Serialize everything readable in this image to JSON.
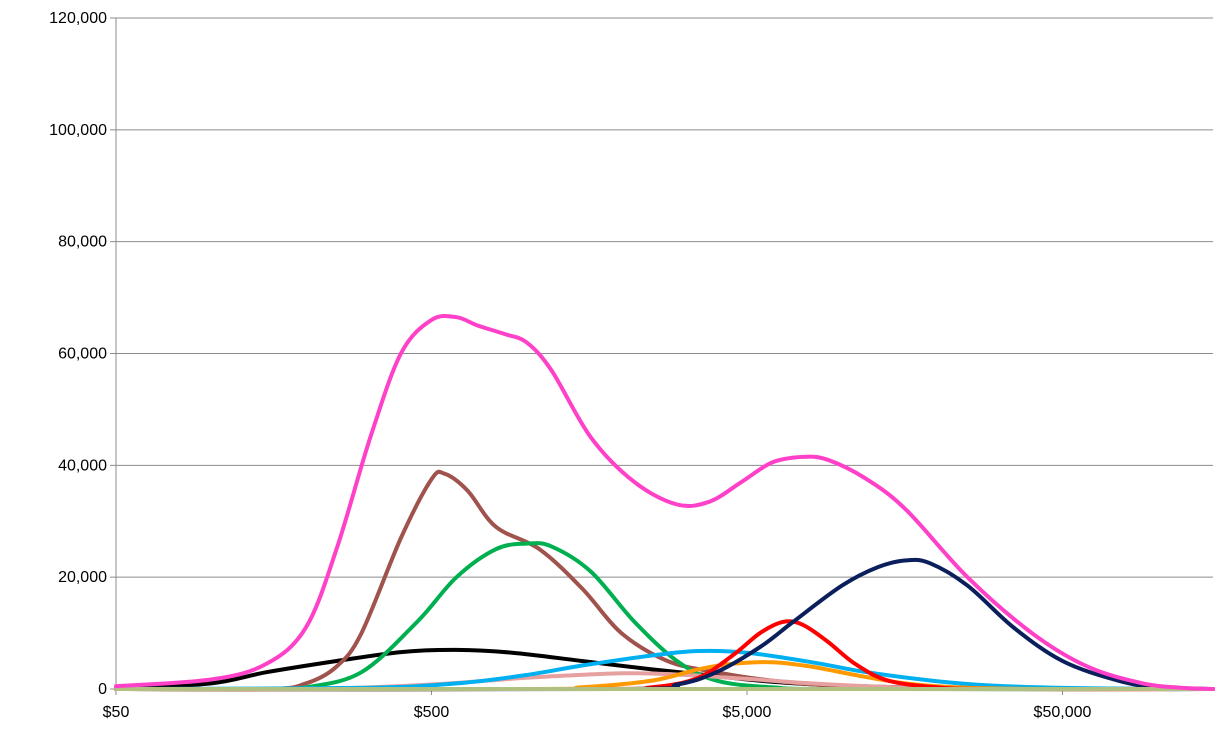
{
  "chart_data": {
    "type": "line",
    "title": "",
    "xlabel": "",
    "ylabel": "",
    "x_scale": "log",
    "xlim": [
      50,
      150000
    ],
    "ylim": [
      0,
      120000
    ],
    "grid": "horizontal",
    "x_ticks": [
      {
        "value": 50,
        "label": "$50"
      },
      {
        "value": 500,
        "label": "$500"
      },
      {
        "value": 5000,
        "label": "$5,000"
      },
      {
        "value": 50000,
        "label": "$50,000"
      }
    ],
    "y_ticks": [
      {
        "value": 0,
        "label": "0"
      },
      {
        "value": 20000,
        "label": "20,000"
      },
      {
        "value": 40000,
        "label": "40,000"
      },
      {
        "value": 60000,
        "label": "60,000"
      },
      {
        "value": 80000,
        "label": "80,000"
      },
      {
        "value": 100000,
        "label": "100,000"
      },
      {
        "value": 120000,
        "label": "120,000"
      }
    ],
    "series": [
      {
        "color": "#000000",
        "points": [
          [
            50,
            0
          ],
          [
            100,
            1000
          ],
          [
            150,
            3000
          ],
          [
            250,
            5000
          ],
          [
            400,
            6600
          ],
          [
            600,
            7000
          ],
          [
            900,
            6500
          ],
          [
            1500,
            5000
          ],
          [
            2500,
            3500
          ],
          [
            4000,
            2300
          ],
          [
            6000,
            1300
          ],
          [
            10000,
            600
          ],
          [
            20000,
            200
          ],
          [
            50000,
            50
          ],
          [
            150000,
            0
          ]
        ]
      },
      {
        "color": "#A0524D",
        "points": [
          [
            50,
            0
          ],
          [
            150,
            0
          ],
          [
            200,
            1000
          ],
          [
            250,
            4000
          ],
          [
            300,
            10000
          ],
          [
            400,
            27000
          ],
          [
            500,
            37500
          ],
          [
            550,
            38500
          ],
          [
            650,
            35500
          ],
          [
            800,
            29000
          ],
          [
            1100,
            25000
          ],
          [
            1500,
            18000
          ],
          [
            2000,
            10000
          ],
          [
            2800,
            5000
          ],
          [
            4000,
            3000
          ],
          [
            6000,
            1500
          ],
          [
            10000,
            500
          ],
          [
            20000,
            0
          ],
          [
            150000,
            0
          ]
        ]
      },
      {
        "color": "#00B050",
        "points": [
          [
            50,
            0
          ],
          [
            150,
            0
          ],
          [
            200,
            300
          ],
          [
            300,
            3000
          ],
          [
            450,
            12000
          ],
          [
            600,
            20000
          ],
          [
            800,
            25000
          ],
          [
            1000,
            26000
          ],
          [
            1200,
            25500
          ],
          [
            1600,
            21000
          ],
          [
            2200,
            12000
          ],
          [
            3000,
            5000
          ],
          [
            4000,
            1500
          ],
          [
            6000,
            300
          ],
          [
            10000,
            0
          ],
          [
            150000,
            0
          ]
        ]
      },
      {
        "color": "#E6A0A0",
        "points": [
          [
            50,
            0
          ],
          [
            200,
            0
          ],
          [
            500,
            800
          ],
          [
            1000,
            2000
          ],
          [
            2000,
            2800
          ],
          [
            3000,
            2600
          ],
          [
            5000,
            1800
          ],
          [
            8000,
            1000
          ],
          [
            15000,
            300
          ],
          [
            30000,
            0
          ],
          [
            150000,
            0
          ]
        ]
      },
      {
        "color": "#00B0F0",
        "points": [
          [
            50,
            0
          ],
          [
            300,
            200
          ],
          [
            600,
            1000
          ],
          [
            1000,
            2500
          ],
          [
            1500,
            4200
          ],
          [
            2500,
            6000
          ],
          [
            3500,
            6800
          ],
          [
            5000,
            6500
          ],
          [
            8000,
            4800
          ],
          [
            12000,
            3000
          ],
          [
            20000,
            1400
          ],
          [
            30000,
            600
          ],
          [
            50000,
            200
          ],
          [
            100000,
            0
          ],
          [
            150000,
            0
          ]
        ]
      },
      {
        "color": "#FF9900",
        "points": [
          [
            50,
            0
          ],
          [
            1000,
            0
          ],
          [
            1500,
            300
          ],
          [
            2500,
            1500
          ],
          [
            3500,
            3500
          ],
          [
            4500,
            4500
          ],
          [
            6000,
            4800
          ],
          [
            8000,
            4000
          ],
          [
            11000,
            2500
          ],
          [
            15000,
            1200
          ],
          [
            20000,
            500
          ],
          [
            30000,
            100
          ],
          [
            50000,
            0
          ],
          [
            150000,
            0
          ]
        ]
      },
      {
        "color": "#FF0000",
        "points": [
          [
            50,
            0
          ],
          [
            1500,
            0
          ],
          [
            2500,
            300
          ],
          [
            3500,
            2000
          ],
          [
            4500,
            6000
          ],
          [
            5500,
            10000
          ],
          [
            6500,
            12000
          ],
          [
            7500,
            11500
          ],
          [
            9000,
            8500
          ],
          [
            11000,
            4500
          ],
          [
            14000,
            1500
          ],
          [
            20000,
            300
          ],
          [
            30000,
            0
          ],
          [
            150000,
            0
          ]
        ]
      },
      {
        "color": "#0A1F5C",
        "points": [
          [
            50,
            0
          ],
          [
            2000,
            0
          ],
          [
            3000,
            800
          ],
          [
            4000,
            3000
          ],
          [
            5500,
            7500
          ],
          [
            7000,
            12000
          ],
          [
            10000,
            18500
          ],
          [
            13000,
            21800
          ],
          [
            16000,
            23000
          ],
          [
            19000,
            22500
          ],
          [
            25000,
            18500
          ],
          [
            35000,
            11000
          ],
          [
            50000,
            5000
          ],
          [
            75000,
            1500
          ],
          [
            100000,
            300
          ],
          [
            150000,
            0
          ]
        ]
      },
      {
        "color": "#B0C080",
        "points": [
          [
            50,
            0
          ],
          [
            150000,
            0
          ]
        ]
      },
      {
        "color": "#FF40C8",
        "points": [
          [
            50,
            500
          ],
          [
            100,
            1700
          ],
          [
            150,
            4500
          ],
          [
            200,
            11000
          ],
          [
            250,
            25000
          ],
          [
            320,
            45000
          ],
          [
            400,
            60000
          ],
          [
            500,
            66000
          ],
          [
            600,
            66500
          ],
          [
            700,
            65000
          ],
          [
            850,
            63500
          ],
          [
            1000,
            62000
          ],
          [
            1200,
            57000
          ],
          [
            1600,
            45000
          ],
          [
            2200,
            37000
          ],
          [
            3000,
            33000
          ],
          [
            3800,
            33500
          ],
          [
            4800,
            37000
          ],
          [
            6000,
            40500
          ],
          [
            7500,
            41500
          ],
          [
            9000,
            41000
          ],
          [
            12000,
            37500
          ],
          [
            16000,
            32000
          ],
          [
            25000,
            20000
          ],
          [
            40000,
            10000
          ],
          [
            60000,
            4000
          ],
          [
            90000,
            1000
          ],
          [
            120000,
            200
          ],
          [
            150000,
            0
          ]
        ]
      }
    ]
  }
}
